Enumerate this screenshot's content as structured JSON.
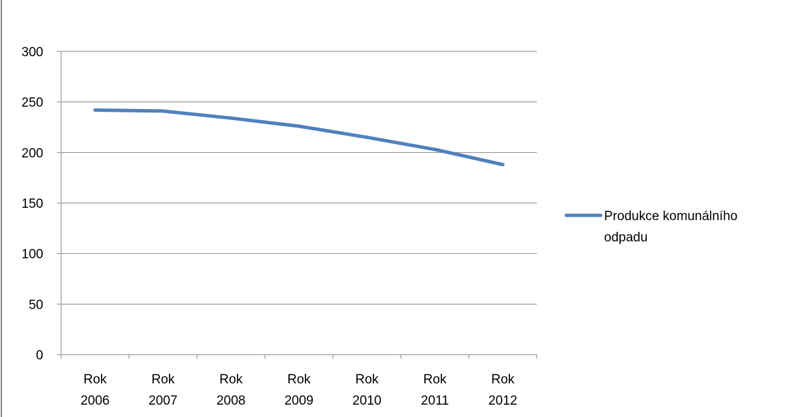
{
  "chart_data": {
    "type": "line",
    "title": "",
    "xlabel": "",
    "ylabel": "",
    "categories": [
      [
        "Rok",
        "2006"
      ],
      [
        "Rok",
        "2007"
      ],
      [
        "Rok",
        "2008"
      ],
      [
        "Rok",
        "2009"
      ],
      [
        "Rok",
        "2010"
      ],
      [
        "Rok",
        "2011"
      ],
      [
        "Rok",
        "2012"
      ]
    ],
    "series": [
      {
        "name": "Produkce komunálního odpadu",
        "legend_lines": [
          "Produkce komunálního",
          "odpadu"
        ],
        "values": [
          242,
          241,
          234,
          226,
          215,
          203,
          188
        ],
        "color": "#4f81bd"
      }
    ],
    "ylim": [
      0,
      300
    ],
    "yticks": [
      0,
      50,
      100,
      150,
      200,
      250,
      300
    ],
    "grid": true,
    "legend_position": "right",
    "gridline_color": "#868686",
    "axis_color": "#868686"
  }
}
